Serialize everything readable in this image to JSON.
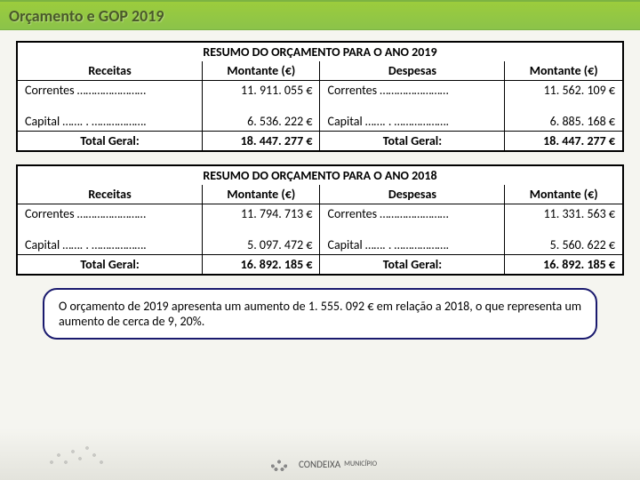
{
  "page": {
    "title": "Orçamento e GOP 2019"
  },
  "table2019": {
    "title": "RESUMO DO ORÇAMENTO PARA O ANO 2019",
    "cols": {
      "receitas": "Receitas",
      "montante": "Montante (€)",
      "despesas": "Despesas",
      "montante2": "Montante (€)"
    },
    "correntes": {
      "r_label": "Correntes ……………………",
      "r_val": "11. 911. 055 €",
      "d_label": "Correntes ……………………",
      "d_val": "11. 562. 109 €"
    },
    "capital": {
      "r_label": "Capital ……. . ……………….",
      "r_val": "6. 536. 222 €",
      "d_label": "Capital ……. . ……………….",
      "d_val": "6. 885. 168 €"
    },
    "total": {
      "r_label": "Total Geral:",
      "r_val": "18. 447. 277 €",
      "d_label": "Total Geral:",
      "d_val": "18. 447. 277 €"
    }
  },
  "table2018": {
    "title": "RESUMO DO ORÇAMENTO PARA O ANO 2018",
    "cols": {
      "receitas": "Receitas",
      "montante": "Montante (€)",
      "despesas": "Despesas",
      "montante2": "Montante (€)"
    },
    "correntes": {
      "r_label": "Correntes ……………………",
      "r_val": "11. 794. 713 €",
      "d_label": "Correntes ……………………",
      "d_val": "11. 331. 563 €"
    },
    "capital": {
      "r_label": "Capital ……. . ……………….",
      "r_val": "5. 097. 472 €",
      "d_label": "Capital ……. . ……………….",
      "d_val": "5. 560. 622 €"
    },
    "total": {
      "r_label": "Total Geral:",
      "r_val": "16. 892. 185 €",
      "d_label": "Total Geral:",
      "d_val": "16. 892. 185 €"
    }
  },
  "note": {
    "text": "O orçamento de 2019 apresenta um aumento de 1. 555. 092 € em relação a 2018, o que representa um aumento de cerca de 9, 20%."
  },
  "footer": {
    "logo_text": "CONDEIXA",
    "logo_sub": "MUNICÍPIO"
  },
  "styling": {
    "header_bg": "#8bc34a",
    "header_text": "#4a5a2a",
    "border_color": "#000000",
    "note_border": "#1a1a6e",
    "body_bg": "#f5f5f0",
    "table_bg": "#ffffff",
    "title_fontsize": 18,
    "header_row_fontsize": 14,
    "data_fontsize": 13,
    "total_fontsize": 17,
    "note_fontsize": 14
  }
}
